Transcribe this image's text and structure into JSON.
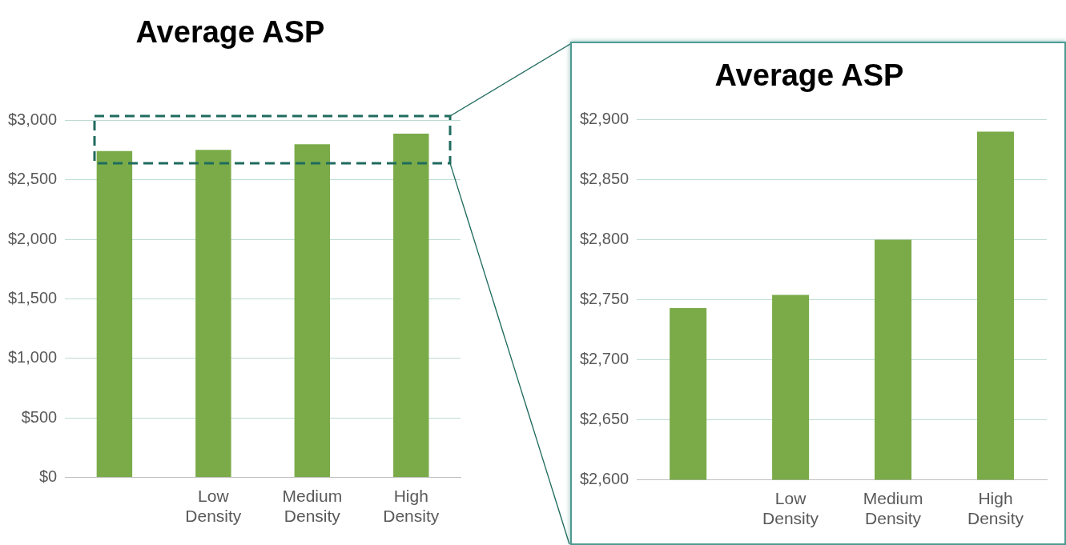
{
  "chart_data": [
    {
      "type": "bar",
      "title": "Average ASP",
      "categories": [
        null,
        "Low Density",
        "Medium Density",
        "High Density"
      ],
      "values": [
        2743,
        2754,
        2800,
        2890
      ],
      "color": "#7aab48",
      "ylim": [
        0,
        3000
      ],
      "yticks": [
        {
          "value": 0,
          "label": "$0"
        },
        {
          "value": 500,
          "label": "$500"
        },
        {
          "value": 1000,
          "label": "$1,000"
        },
        {
          "value": 1500,
          "label": "$1,500"
        },
        {
          "value": 2000,
          "label": "$2,000"
        },
        {
          "value": 2500,
          "label": "$2,500"
        },
        {
          "value": 3000,
          "label": "$3,000"
        }
      ],
      "grid": "y",
      "legend": false
    },
    {
      "type": "bar",
      "title": "Average ASP",
      "categories": [
        null,
        "Low Density",
        "Medium Density",
        "High Density"
      ],
      "values": [
        2743,
        2754,
        2800,
        2890
      ],
      "color": "#7aab48",
      "ylim": [
        2600,
        2900
      ],
      "yticks": [
        {
          "value": 2600,
          "label": "$2,600"
        },
        {
          "value": 2650,
          "label": "$2,650"
        },
        {
          "value": 2700,
          "label": "$2,700"
        },
        {
          "value": 2750,
          "label": "$2,750"
        },
        {
          "value": 2800,
          "label": "$2,800"
        },
        {
          "value": 2850,
          "label": "$2,850"
        },
        {
          "value": 2900,
          "label": "$2,900"
        }
      ],
      "grid": "y",
      "legend": false
    }
  ]
}
